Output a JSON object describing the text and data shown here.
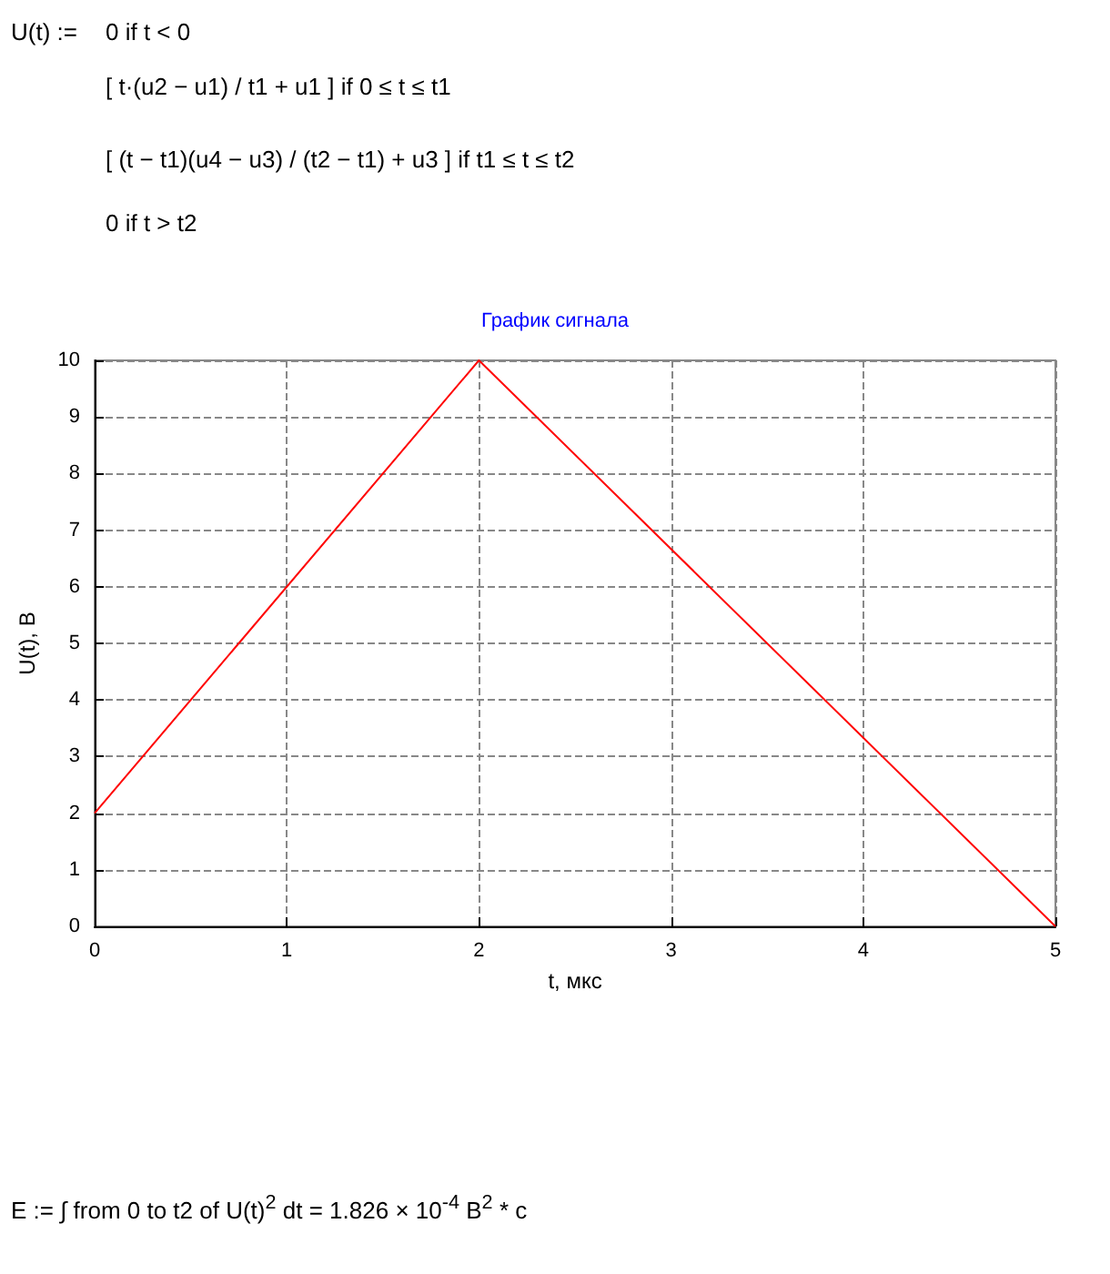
{
  "chart_data": {
    "type": "line",
    "title": "График сигнала",
    "xlabel": "t, мкс",
    "ylabel": "U(t), B",
    "x": [
      0,
      2,
      5
    ],
    "series": [
      {
        "color": "#ff0000",
        "values": [
          2,
          10,
          0
        ]
      }
    ],
    "xlim": [
      0,
      5
    ],
    "xticks": [
      0,
      1,
      2,
      3,
      4,
      5
    ],
    "ylim": [
      0,
      10
    ],
    "yticks": [
      0,
      1,
      2,
      3,
      4,
      5,
      6,
      7,
      8,
      9,
      10
    ],
    "grid": true,
    "marker": "none",
    "line_style": "solid",
    "annotations": [
      "U(t) :=",
      "0  if  t < 0",
      "[ t·(u2 − u1) / t1 + u1 ]  if  0 ≤ t ≤ t1",
      "[ (t − t1)(u4 − u3) / (t2 − t1) + u3 ]  if  t1 ≤ t ≤ t2",
      "0  if  t > t2",
      "E := ∫ from 0 to t2 of U(t)$^{2}$ dt = 1.826 × 10$^{-4}$  B$^{2}$ * c"
    ]
  }
}
